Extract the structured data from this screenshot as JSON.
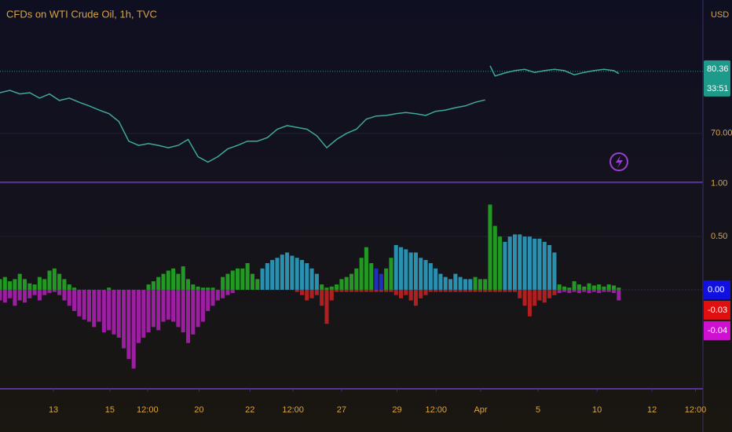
{
  "chart_data": [
    {
      "type": "line",
      "title": "CFDs on WTI Crude Oil, 1h, TVC",
      "currency": "USD",
      "color": "#3fa89a",
      "x": [
        0,
        2,
        4,
        6,
        8,
        10,
        12,
        14,
        16,
        18,
        20,
        22,
        24,
        26,
        28,
        30,
        32,
        34,
        36,
        38,
        40,
        42,
        44,
        46,
        48,
        50,
        52,
        54,
        56,
        58,
        60,
        62,
        64,
        66,
        68,
        70,
        72,
        74,
        76,
        78,
        80,
        82,
        84,
        86,
        88,
        90,
        92,
        94,
        96,
        98,
        98.5,
        99,
        100,
        102,
        104,
        106,
        108,
        110,
        112,
        114,
        116,
        118,
        120,
        122,
        124,
        125
      ],
      "values": [
        76.8,
        77.2,
        76.6,
        76.8,
        75.9,
        76.6,
        75.5,
        75.9,
        75.2,
        74.6,
        73.9,
        73.3,
        72.0,
        68.7,
        68.0,
        68.3,
        68.0,
        67.6,
        68.0,
        69.0,
        66.1,
        65.2,
        66.1,
        67.4,
        68.0,
        68.7,
        68.7,
        69.3,
        70.7,
        71.3,
        71.0,
        70.7,
        69.6,
        67.6,
        69.0,
        70.0,
        70.7,
        72.4,
        72.9,
        73.0,
        73.3,
        73.5,
        73.3,
        73.0,
        73.7,
        73.9,
        74.3,
        74.6,
        75.2,
        75.6,
        null,
        81.3,
        79.6,
        80.1,
        80.5,
        80.7,
        80.2,
        80.5,
        80.7,
        80.5,
        79.8,
        80.2,
        80.5,
        80.7,
        80.5,
        80.0
      ],
      "last_price": 80.36,
      "last_price_color": "#1e9a8a",
      "countdown": "33:51",
      "xlim": [
        0,
        142
      ],
      "ylim": [
        62.1,
        92.3
      ],
      "yticks": [
        {
          "value": 70,
          "label": "70.00"
        }
      ],
      "grid": true
    },
    {
      "type": "bar",
      "xlim": [
        0,
        142
      ],
      "ylim": [
        -0.93,
        1.01
      ],
      "yticks": [
        {
          "value": 1,
          "label": "1.00"
        },
        {
          "value": 0.5,
          "label": "0.50"
        }
      ],
      "xticks": [
        {
          "value": 10.8,
          "label": "13"
        },
        {
          "value": 22.2,
          "label": "15"
        },
        {
          "value": 29.8,
          "label": "12:00"
        },
        {
          "value": 40.2,
          "label": "20"
        },
        {
          "value": 50.5,
          "label": "22"
        },
        {
          "value": 59.2,
          "label": "12:00"
        },
        {
          "value": 69,
          "label": "27"
        },
        {
          "value": 80.2,
          "label": "29"
        },
        {
          "value": 88.1,
          "label": "12:00"
        },
        {
          "value": 97.1,
          "label": "Apr"
        },
        {
          "value": 108.7,
          "label": "5"
        },
        {
          "value": 120.6,
          "label": "10"
        },
        {
          "value": 131.7,
          "label": "12"
        },
        {
          "value": 140.5,
          "label": "12:00"
        }
      ],
      "grid": true,
      "up": {
        "values": [
          0.1,
          0.12,
          0.08,
          0.1,
          0.15,
          0.1,
          0.06,
          0.05,
          0.12,
          0.1,
          0.18,
          0.2,
          0.15,
          0.1,
          0.05,
          0.02,
          0,
          0,
          0,
          0,
          0,
          0,
          0.02,
          0,
          0,
          0,
          0,
          0,
          0,
          0,
          0.05,
          0.08,
          0.12,
          0.15,
          0.18,
          0.2,
          0.15,
          0.22,
          0.1,
          0.05,
          0.03,
          0.02,
          0.02,
          0.02,
          0,
          0.12,
          0.15,
          0.18,
          0.2,
          0.2,
          0.25,
          0.15,
          0.1,
          0.2,
          0.25,
          0.28,
          0.3,
          0.33,
          0.35,
          0.32,
          0.3,
          0.28,
          0.25,
          0.2,
          0.15,
          0.05,
          0.02,
          0.03,
          0.05,
          0.1,
          0.12,
          0.15,
          0.2,
          0.3,
          0.4,
          0.25,
          0.2,
          0.15,
          0.2,
          0.3,
          0.42,
          0.4,
          0.38,
          0.35,
          0.35,
          0.3,
          0.28,
          0.25,
          0.2,
          0.15,
          0.12,
          0.1,
          0.15,
          0.12,
          0.1,
          0.1,
          0.12,
          0.1,
          0.1,
          0.8,
          0.6,
          0.5,
          0.45,
          0.5,
          0.52,
          0.52,
          0.5,
          0.5,
          0.48,
          0.48,
          0.45,
          0.42,
          0.35,
          0.05,
          0.03,
          0.02,
          0.08,
          0.05,
          0.03,
          0.06,
          0.04,
          0.05,
          0.03,
          0.05,
          0.04,
          0.02
        ],
        "colors": [
          "#229922",
          "#229922",
          "#229922",
          "#229922",
          "#229922",
          "#229922",
          "#229922",
          "#229922",
          "#229922",
          "#229922",
          "#229922",
          "#229922",
          "#229922",
          "#229922",
          "#229922",
          "#229922",
          "#229922",
          "#229922",
          "#229922",
          "#229922",
          "#229922",
          "#229922",
          "#229922",
          "#229922",
          "#229922",
          "#229922",
          "#229922",
          "#229922",
          "#229922",
          "#229922",
          "#229922",
          "#229922",
          "#229922",
          "#229922",
          "#229922",
          "#229922",
          "#229922",
          "#229922",
          "#229922",
          "#229922",
          "#229922",
          "#229922",
          "#229922",
          "#229922",
          "#229922",
          "#229922",
          "#229922",
          "#229922",
          "#229922",
          "#229922",
          "#229922",
          "#229922",
          "#229922",
          "#2a90b0",
          "#2a90b0",
          "#2a90b0",
          "#2a90b0",
          "#2a90b0",
          "#2a90b0",
          "#2a90b0",
          "#2a90b0",
          "#2a90b0",
          "#2a90b0",
          "#2a90b0",
          "#2a90b0",
          "#229922",
          "#229922",
          "#229922",
          "#229922",
          "#229922",
          "#229922",
          "#229922",
          "#229922",
          "#229922",
          "#229922",
          "#229922",
          "#1f2fc0",
          "#1f2fc0",
          "#229922",
          "#229922",
          "#2a90b0",
          "#2a90b0",
          "#2a90b0",
          "#2a90b0",
          "#2a90b0",
          "#2a90b0",
          "#2a90b0",
          "#2a90b0",
          "#2a90b0",
          "#2a90b0",
          "#2a90b0",
          "#2a90b0",
          "#2a90b0",
          "#2a90b0",
          "#2a90b0",
          "#2a90b0",
          "#229922",
          "#229922",
          "#229922",
          "#229922",
          "#229922",
          "#229922",
          "#2a90b0",
          "#2a90b0",
          "#2a90b0",
          "#2a90b0",
          "#2a90b0",
          "#2a90b0",
          "#2a90b0",
          "#2a90b0",
          "#2a90b0",
          "#2a90b0",
          "#2a90b0",
          "#229922",
          "#229922",
          "#229922",
          "#229922",
          "#229922",
          "#229922",
          "#229922",
          "#229922",
          "#229922",
          "#229922",
          "#229922",
          "#229922",
          "#229922"
        ]
      },
      "down": {
        "values": [
          -0.1,
          -0.12,
          -0.08,
          -0.15,
          -0.1,
          -0.12,
          -0.08,
          -0.05,
          -0.1,
          -0.05,
          -0.03,
          -0.02,
          -0.05,
          -0.1,
          -0.15,
          -0.2,
          -0.25,
          -0.28,
          -0.3,
          -0.35,
          -0.3,
          -0.4,
          -0.38,
          -0.42,
          -0.45,
          -0.55,
          -0.65,
          -0.74,
          -0.5,
          -0.45,
          -0.4,
          -0.35,
          -0.38,
          -0.3,
          -0.28,
          -0.3,
          -0.35,
          -0.4,
          -0.5,
          -0.42,
          -0.35,
          -0.3,
          -0.2,
          -0.15,
          -0.1,
          -0.08,
          -0.05,
          -0.03,
          0,
          0,
          0,
          0,
          0,
          0,
          0,
          0,
          0,
          0,
          0,
          0,
          -0.02,
          -0.05,
          -0.1,
          -0.08,
          -0.05,
          -0.15,
          -0.32,
          -0.1,
          -0.02,
          -0.02,
          -0.02,
          -0.02,
          -0.02,
          -0.02,
          -0.02,
          -0.02,
          -0.02,
          -0.02,
          -0.02,
          -0.02,
          -0.05,
          -0.08,
          -0.05,
          -0.1,
          -0.15,
          -0.08,
          -0.05,
          -0.02,
          -0.02,
          -0.02,
          -0.02,
          -0.02,
          -0.02,
          -0.02,
          -0.02,
          -0.02,
          -0.02,
          -0.02,
          -0.02,
          -0.02,
          -0.02,
          -0.02,
          -0.02,
          -0.02,
          -0.02,
          -0.08,
          -0.15,
          -0.25,
          -0.15,
          -0.1,
          -0.12,
          -0.08,
          -0.05,
          -0.03,
          -0.02,
          -0.03,
          -0.02,
          -0.03,
          -0.02,
          -0.03,
          -0.02,
          -0.03,
          -0.02,
          -0.02,
          -0.03,
          -0.1
        ],
        "colors": [
          "#9b1fa0",
          "#9b1fa0",
          "#9b1fa0",
          "#9b1fa0",
          "#9b1fa0",
          "#9b1fa0",
          "#9b1fa0",
          "#9b1fa0",
          "#9b1fa0",
          "#9b1fa0",
          "#9b1fa0",
          "#9b1fa0",
          "#9b1fa0",
          "#9b1fa0",
          "#9b1fa0",
          "#9b1fa0",
          "#9b1fa0",
          "#9b1fa0",
          "#9b1fa0",
          "#9b1fa0",
          "#9b1fa0",
          "#9b1fa0",
          "#9b1fa0",
          "#9b1fa0",
          "#9b1fa0",
          "#9b1fa0",
          "#9b1fa0",
          "#9b1fa0",
          "#9b1fa0",
          "#9b1fa0",
          "#9b1fa0",
          "#9b1fa0",
          "#9b1fa0",
          "#9b1fa0",
          "#9b1fa0",
          "#9b1fa0",
          "#9b1fa0",
          "#9b1fa0",
          "#9b1fa0",
          "#9b1fa0",
          "#9b1fa0",
          "#9b1fa0",
          "#9b1fa0",
          "#9b1fa0",
          "#9b1fa0",
          "#9b1fa0",
          "#9b1fa0",
          "#9b1fa0",
          "#b02020",
          "#b02020",
          "#b02020",
          "#b02020",
          "#b02020",
          "#b02020",
          "#b02020",
          "#b02020",
          "#b02020",
          "#b02020",
          "#b02020",
          "#b02020",
          "#b02020",
          "#b02020",
          "#b02020",
          "#b02020",
          "#b02020",
          "#b02020",
          "#b02020",
          "#b02020",
          "#b02020",
          "#b02020",
          "#b02020",
          "#b02020",
          "#b02020",
          "#b02020",
          "#b02020",
          "#b02020",
          "#b02020",
          "#b02020",
          "#b02020",
          "#b02020",
          "#b02020",
          "#b02020",
          "#b02020",
          "#b02020",
          "#b02020",
          "#b02020",
          "#b02020",
          "#b02020",
          "#b02020",
          "#b02020",
          "#b02020",
          "#b02020",
          "#b02020",
          "#b02020",
          "#b02020",
          "#b02020",
          "#b02020",
          "#b02020",
          "#b02020",
          "#b02020",
          "#b02020",
          "#b02020",
          "#b02020",
          "#b02020",
          "#b02020",
          "#b02020",
          "#b02020",
          "#b02020",
          "#b02020",
          "#b02020",
          "#b02020",
          "#b02020",
          "#b02020",
          "#9b1fa0",
          "#9b1fa0",
          "#9b1fa0",
          "#9b1fa0",
          "#9b1fa0",
          "#9b1fa0",
          "#9b1fa0",
          "#9b1fa0",
          "#9b1fa0",
          "#9b1fa0",
          "#9b1fa0",
          "#9b1fa0",
          "#9b1fa0"
        ]
      },
      "value_tags": [
        {
          "value": 0,
          "label": "0.00",
          "color": "#1010e0"
        },
        {
          "value": -0.03,
          "label": "-0.03",
          "color": "#e01010"
        },
        {
          "value": -0.04,
          "label": "-0.04",
          "color": "#d010d0"
        }
      ]
    }
  ]
}
